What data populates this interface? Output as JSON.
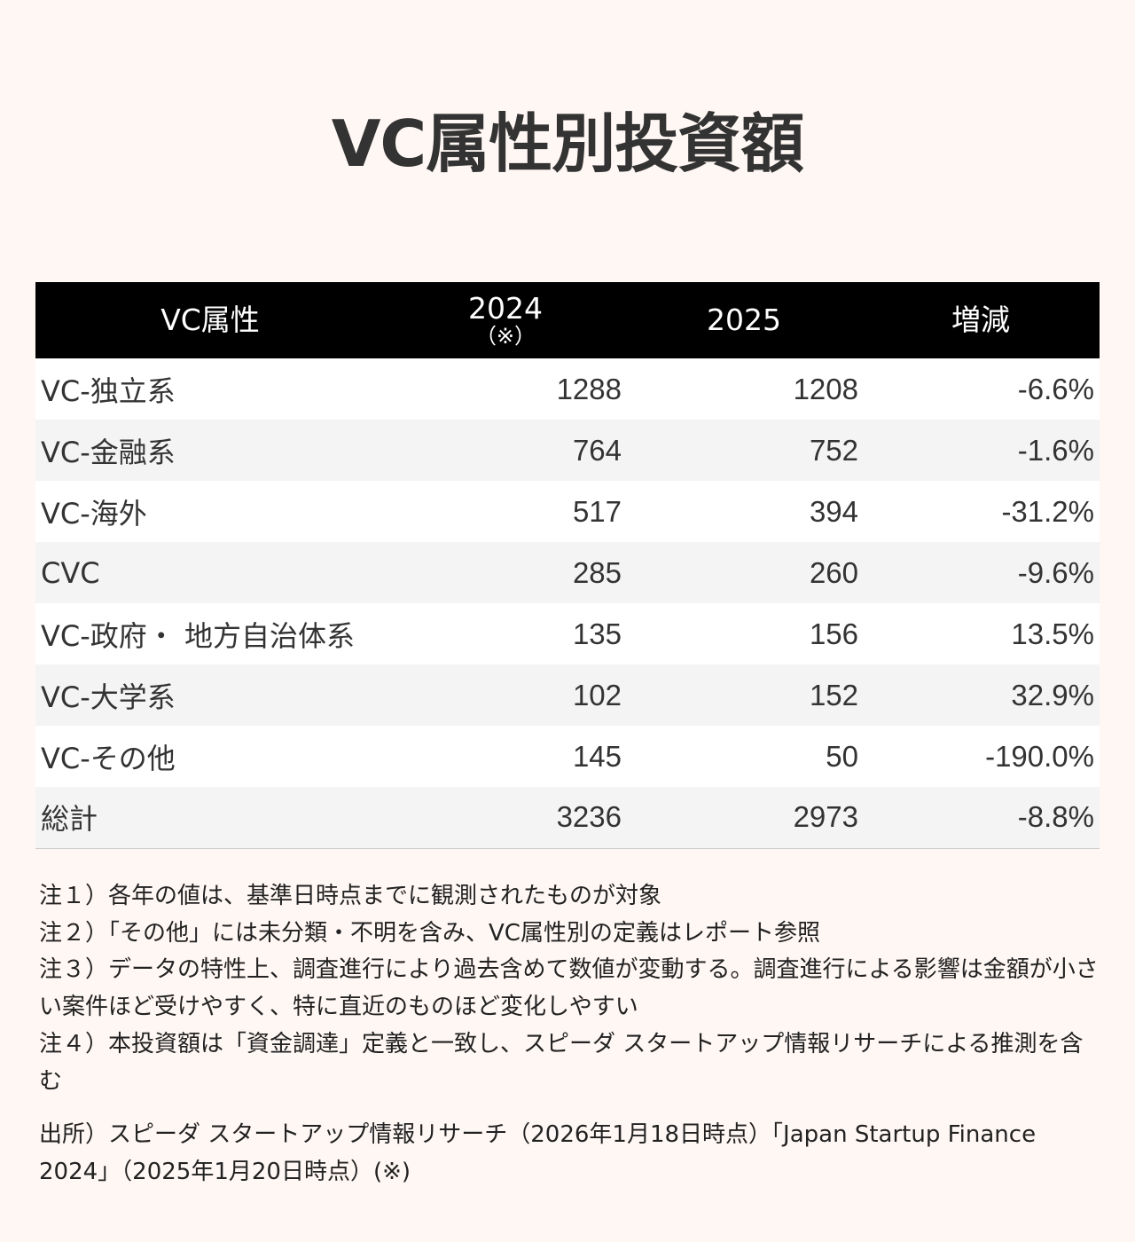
{
  "title": "VC属性別投資額",
  "table": {
    "headers": {
      "attribute": "VC属性",
      "y2024": "2024",
      "y2024_note": "（※）",
      "y2025": "2025",
      "change": "増減"
    },
    "rows": [
      {
        "label": "VC-独立系",
        "y2024": "1288",
        "y2025": "1208",
        "change": "-6.6%"
      },
      {
        "label": "VC-金融系",
        "y2024": "764",
        "y2025": "752",
        "change": "-1.6%"
      },
      {
        "label": "VC-海外",
        "y2024": "517",
        "y2025": "394",
        "change": "-31.2%"
      },
      {
        "label": "CVC",
        "y2024": "285",
        "y2025": "260",
        "change": "-9.6%"
      },
      {
        "label": "VC-政府・ 地方自治体系",
        "y2024": "135",
        "y2025": "156",
        "change": "13.5%"
      },
      {
        "label": "VC-大学系",
        "y2024": "102",
        "y2025": "152",
        "change": "32.9%"
      },
      {
        "label": "VC-その他",
        "y2024": "145",
        "y2025": "50",
        "change": "-190.0%"
      },
      {
        "label": "総計",
        "y2024": "3236",
        "y2025": "2973",
        "change": "-8.8%"
      }
    ]
  },
  "notes": [
    "注１）各年の値は、基準日時点までに観測されたものが対象",
    "注２）「その他」には未分類・不明を含み、VC属性別の定義はレポート参照",
    "注３）データの特性上、調査進行により過去含めて数値が変動する。調査進行による影響は金額が小さい案件ほど受けやすく、特に直近のものほど変化しやすい",
    "注４）本投資額は「資金調達」定義と一致し、スピーダ スタートアップ情報リサーチによる推測を含む"
  ],
  "source": "出所）スピーダ スタートアップ情報リサーチ（2026年1月18日時点）「Japan Startup Finance 2024」（2025年1月20日時点）(※)",
  "colors": {
    "background": "#fff7f4",
    "header_bg": "#000000",
    "header_text": "#ffffff",
    "row_odd": "#ffffff",
    "row_even": "#f4f4f4",
    "text": "#333333"
  }
}
